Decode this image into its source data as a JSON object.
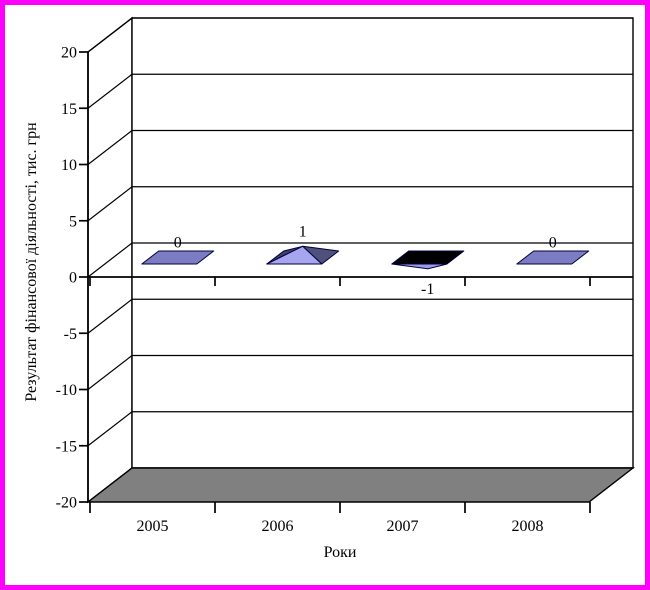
{
  "page": {
    "border_color": "#FF00FF",
    "background": "#FFFFFF"
  },
  "chart_data": {
    "type": "bar",
    "style": "3d-pyramid",
    "categories": [
      "2005",
      "2006",
      "2007",
      "2008"
    ],
    "values": [
      0,
      1,
      -1,
      0
    ],
    "data_labels": [
      "0",
      "1",
      "-1",
      "0"
    ],
    "xlabel": "Роки",
    "ylabel": "Результат фінансової діяльності, тис. грн",
    "ylim": [
      -20,
      20
    ],
    "yticks": [
      20,
      15,
      10,
      5,
      0,
      -5,
      -10,
      -15,
      -20
    ],
    "grid": true,
    "legend": false,
    "colors": {
      "positive_front": "#A6A6EE",
      "positive_side": "#50507C",
      "positive_left": "#3F3F68",
      "zero_fill": "#7C7CC2",
      "negative_top": "#000000",
      "negative_underside": "#9C9CE6",
      "shape_outline": "#000040",
      "floor": "#808080",
      "wall_fill": "#FFFFFF",
      "line": "#000000"
    }
  }
}
